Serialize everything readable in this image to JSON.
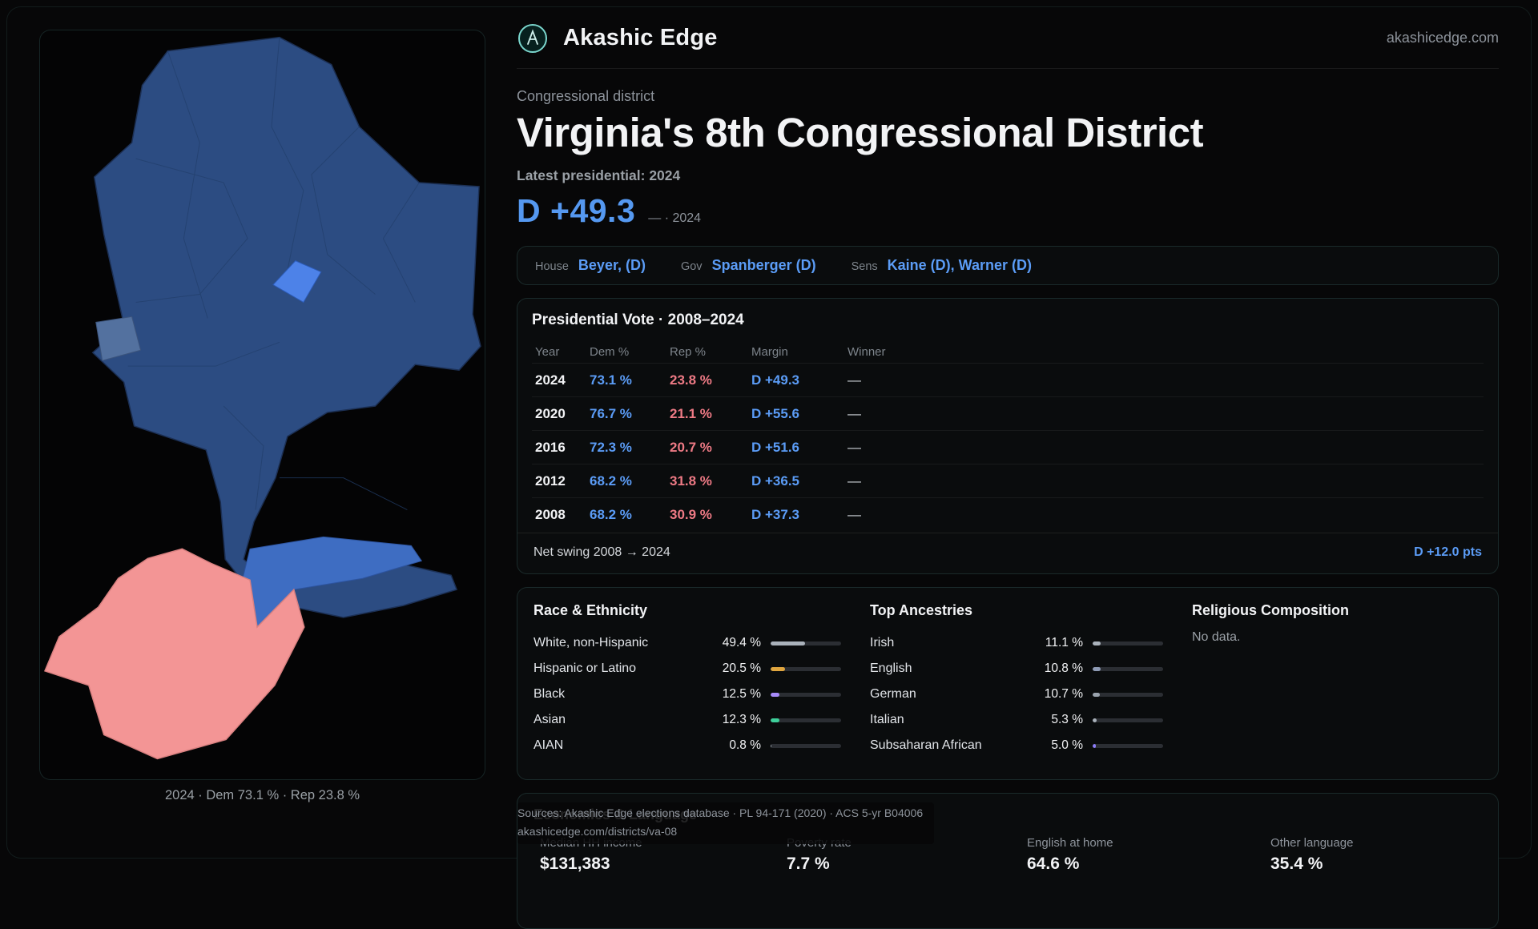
{
  "brand": {
    "name": "Akashic Edge",
    "domain": "akashicedge.com"
  },
  "header": {
    "kicker": "Congressional district",
    "title": "Virginia's 8th Congressional District",
    "latest_label": "Latest presidential: 2024",
    "margin_big": "D +49.3",
    "margin_note": "— · 2024"
  },
  "officials": [
    {
      "role": "House",
      "name": "Beyer, (D)"
    },
    {
      "role": "Gov",
      "name": "Spanberger (D)"
    },
    {
      "role": "Sens",
      "name": "Kaine (D), Warner (D)"
    }
  ],
  "map": {
    "caption": "2024 · Dem 73.1 % · Rep 23.8 %",
    "colors": {
      "main": "#2c4c82",
      "highlight": "#4d82e8",
      "patch": "#53719f",
      "wedge": "#3e6dc2",
      "rep": "#f39595"
    }
  },
  "vote_table": {
    "title": "Presidential Vote · 2008–2024",
    "columns": [
      "Year",
      "Dem %",
      "Rep %",
      "Margin",
      "Winner"
    ],
    "rows": [
      {
        "year": "2024",
        "dem": "73.1 %",
        "rep": "23.8 %",
        "margin": "D +49.3",
        "winner": "—"
      },
      {
        "year": "2020",
        "dem": "76.7 %",
        "rep": "21.1 %",
        "margin": "D +55.6",
        "winner": "—"
      },
      {
        "year": "2016",
        "dem": "72.3 %",
        "rep": "20.7 %",
        "margin": "D +51.6",
        "winner": "—"
      },
      {
        "year": "2012",
        "dem": "68.2 %",
        "rep": "31.8 %",
        "margin": "D +36.5",
        "winner": "—"
      },
      {
        "year": "2008",
        "dem": "68.2 %",
        "rep": "30.9 %",
        "margin": "D +37.3",
        "winner": "—"
      }
    ],
    "net_swing_label": "Net swing 2008 → 2024",
    "net_swing_value": "D +12.0 pts"
  },
  "race": {
    "title": "Race & Ethnicity",
    "rows": [
      {
        "label": "White, non-Hispanic",
        "value": "49.4 %",
        "pct": 49.4,
        "color": "#aab2bb"
      },
      {
        "label": "Hispanic or Latino",
        "value": "20.5 %",
        "pct": 20.5,
        "color": "#e0a63f"
      },
      {
        "label": "Black",
        "value": "12.5 %",
        "pct": 12.5,
        "color": "#a78bfa"
      },
      {
        "label": "Asian",
        "value": "12.3 %",
        "pct": 12.3,
        "color": "#3ecf9a"
      },
      {
        "label": "AIAN",
        "value": "0.8 %",
        "pct": 0.8,
        "color": "#9aa3ad"
      }
    ]
  },
  "ancestries": {
    "title": "Top Ancestries",
    "rows": [
      {
        "label": "Irish",
        "value": "11.1 %",
        "pct": 11.1,
        "color": "#aab2bb"
      },
      {
        "label": "English",
        "value": "10.8 %",
        "pct": 10.8,
        "color": "#8e9bb5"
      },
      {
        "label": "German",
        "value": "10.7 %",
        "pct": 10.7,
        "color": "#9aa3ad"
      },
      {
        "label": "Italian",
        "value": "5.3 %",
        "pct": 5.3,
        "color": "#aab2bb"
      },
      {
        "label": "Subsaharan African",
        "value": "5.0 %",
        "pct": 5.0,
        "color": "#8b7cf6"
      }
    ]
  },
  "religion": {
    "title": "Religious Composition",
    "empty_text": "No data."
  },
  "economics": {
    "title": "Economics & Language",
    "stats": [
      {
        "label": "Median HH income",
        "value": "$131,383"
      },
      {
        "label": "Poverty rate",
        "value": "7.7 %"
      },
      {
        "label": "English at home",
        "value": "64.6 %"
      },
      {
        "label": "Other language",
        "value": "35.4 %"
      }
    ]
  },
  "sources": {
    "line1": "Sources: Akashic Edge elections database · PL 94-171 (2020) · ACS 5-yr B04006",
    "line2": "akashicedge.com/districts/va-08"
  }
}
